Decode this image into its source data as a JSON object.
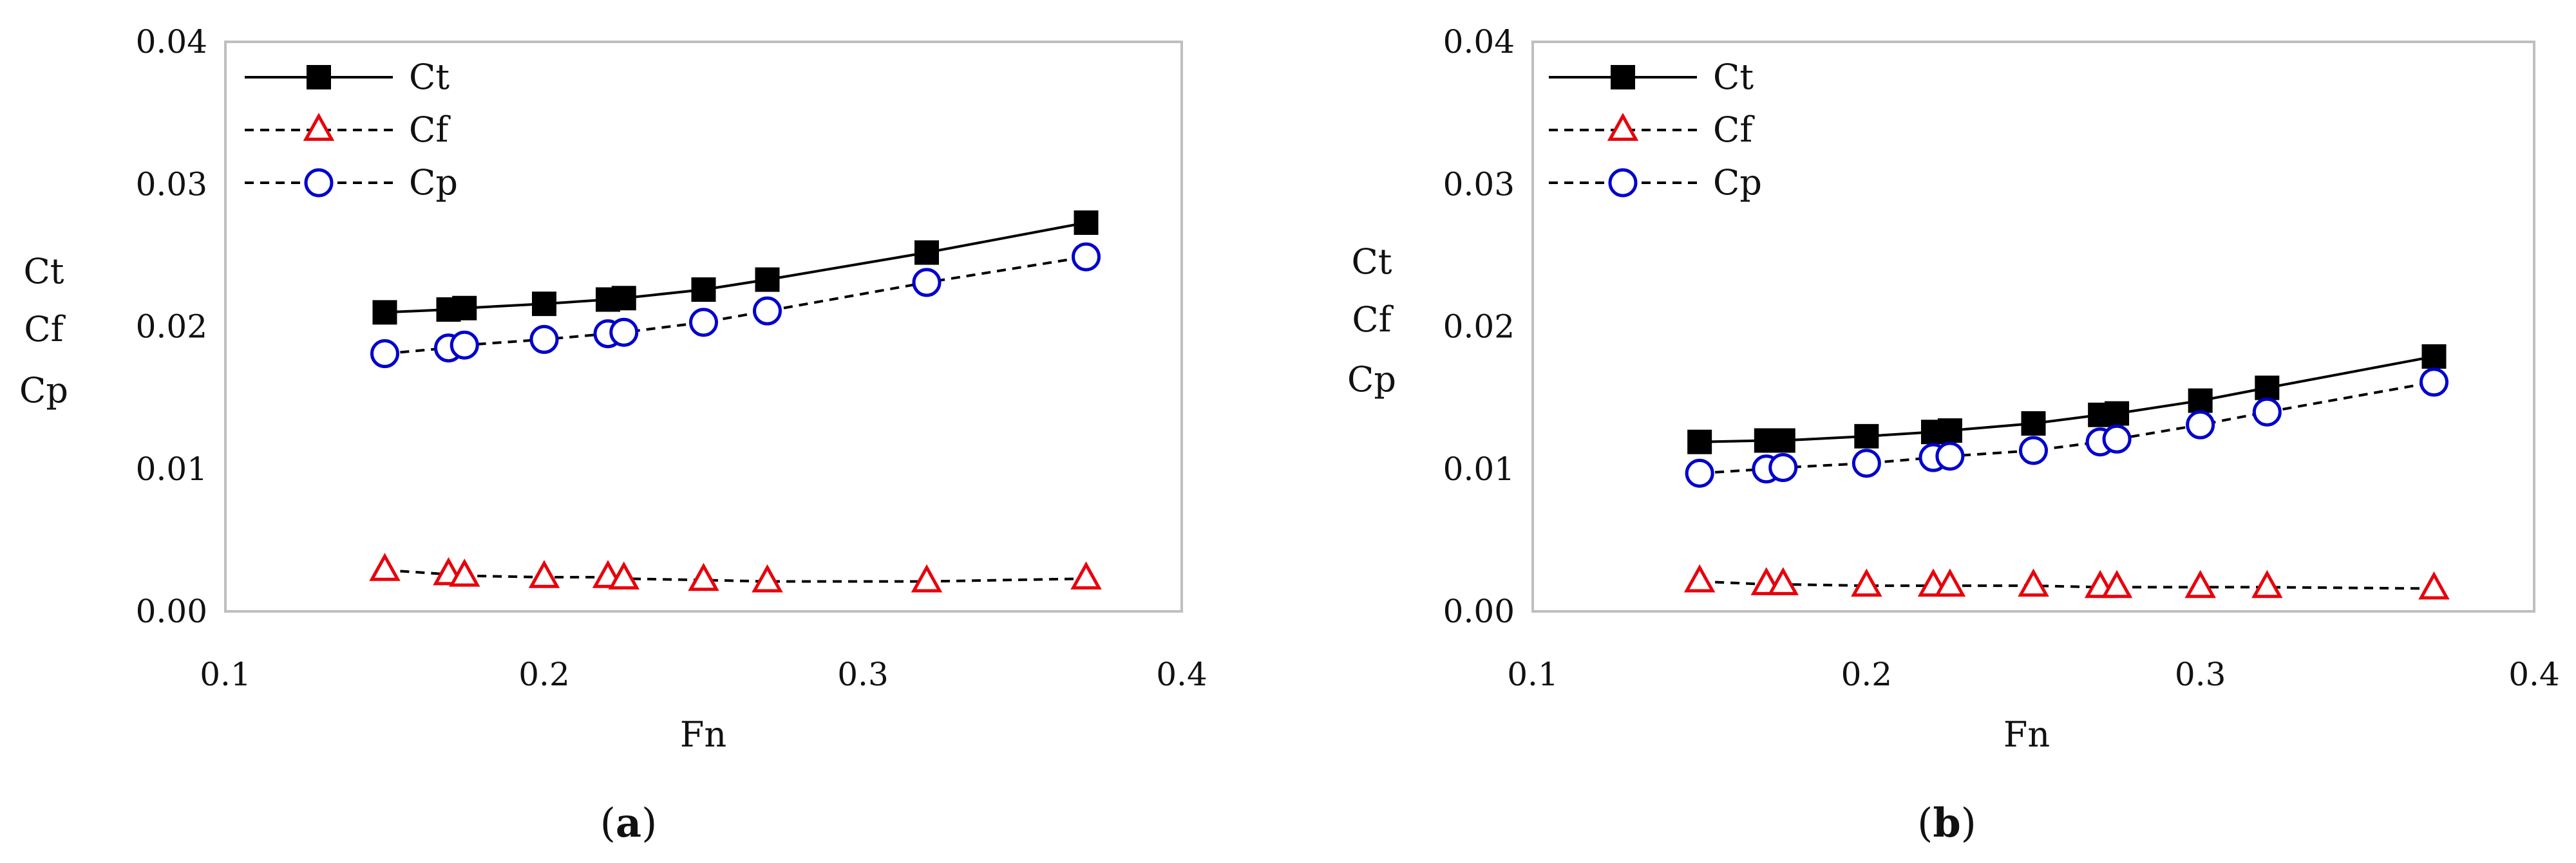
{
  "chart_data": [
    {
      "type": "line",
      "caption_open": "(",
      "caption_letter": "a",
      "caption_close": ")",
      "xlabel": "Fn",
      "ylabel_lines": [
        "Ct",
        "Cf",
        "Cp"
      ],
      "xlim": [
        0.1,
        0.4
      ],
      "ylim": [
        0.0,
        0.04
      ],
      "x_ticks": [
        "0.1",
        "0.2",
        "0.3",
        "0.4"
      ],
      "y_ticks": [
        "0.00",
        "0.01",
        "0.02",
        "0.03",
        "0.04"
      ],
      "grid": false,
      "legend_position": "top-left",
      "series": [
        {
          "name": "Ct",
          "color": "#000000",
          "line": "solid",
          "marker": "filled-square",
          "x": [
            0.15,
            0.17,
            0.175,
            0.2,
            0.22,
            0.225,
            0.25,
            0.27,
            0.32,
            0.37
          ],
          "y": [
            0.021,
            0.0212,
            0.0213,
            0.0216,
            0.0219,
            0.022,
            0.0226,
            0.0233,
            0.0252,
            0.0273
          ]
        },
        {
          "name": "Cf",
          "color": "#e8000b",
          "line": "dashed",
          "marker": "open-triangle",
          "x": [
            0.15,
            0.17,
            0.175,
            0.2,
            0.22,
            0.225,
            0.25,
            0.27,
            0.32,
            0.37
          ],
          "y": [
            0.0029,
            0.0026,
            0.0025,
            0.0024,
            0.0024,
            0.0023,
            0.0022,
            0.0021,
            0.0021,
            0.0023
          ]
        },
        {
          "name": "Cp",
          "color": "#0000cc",
          "line": "dashed",
          "marker": "open-circle",
          "x": [
            0.15,
            0.17,
            0.175,
            0.2,
            0.22,
            0.225,
            0.25,
            0.27,
            0.32,
            0.37
          ],
          "y": [
            0.0181,
            0.0185,
            0.0187,
            0.0191,
            0.0195,
            0.0196,
            0.0203,
            0.0211,
            0.0231,
            0.0249
          ]
        }
      ]
    },
    {
      "type": "line",
      "caption_open": "(",
      "caption_letter": "b",
      "caption_close": ")",
      "xlabel": "Fn",
      "ylabel_lines": [
        "Ct",
        "Cf",
        "Cp"
      ],
      "xlim": [
        0.1,
        0.4
      ],
      "ylim": [
        0.0,
        0.04
      ],
      "x_ticks": [
        "0.1",
        "0.2",
        "0.3",
        "0.4"
      ],
      "y_ticks": [
        "0.00",
        "0.01",
        "0.02",
        "0.03",
        "0.04"
      ],
      "grid": false,
      "legend_position": "top-left",
      "series": [
        {
          "name": "Ct",
          "color": "#000000",
          "line": "solid",
          "marker": "filled-square",
          "x": [
            0.15,
            0.17,
            0.175,
            0.2,
            0.22,
            0.225,
            0.25,
            0.27,
            0.275,
            0.3,
            0.32,
            0.37
          ],
          "y": [
            0.0119,
            0.012,
            0.012,
            0.0123,
            0.0126,
            0.0127,
            0.0132,
            0.0138,
            0.0139,
            0.0148,
            0.0157,
            0.0179
          ]
        },
        {
          "name": "Cf",
          "color": "#e8000b",
          "line": "dashed",
          "marker": "open-triangle",
          "x": [
            0.15,
            0.17,
            0.175,
            0.2,
            0.22,
            0.225,
            0.25,
            0.27,
            0.275,
            0.3,
            0.32,
            0.37
          ],
          "y": [
            0.0021,
            0.0019,
            0.0019,
            0.0018,
            0.0018,
            0.0018,
            0.0018,
            0.0017,
            0.0017,
            0.0017,
            0.0017,
            0.0016
          ]
        },
        {
          "name": "Cp",
          "color": "#0000cc",
          "line": "dashed",
          "marker": "open-circle",
          "x": [
            0.15,
            0.17,
            0.175,
            0.2,
            0.22,
            0.225,
            0.25,
            0.27,
            0.275,
            0.3,
            0.32,
            0.37
          ],
          "y": [
            0.0097,
            0.01,
            0.0101,
            0.0104,
            0.0108,
            0.0109,
            0.0113,
            0.0119,
            0.0121,
            0.0131,
            0.014,
            0.0161
          ]
        }
      ]
    }
  ]
}
